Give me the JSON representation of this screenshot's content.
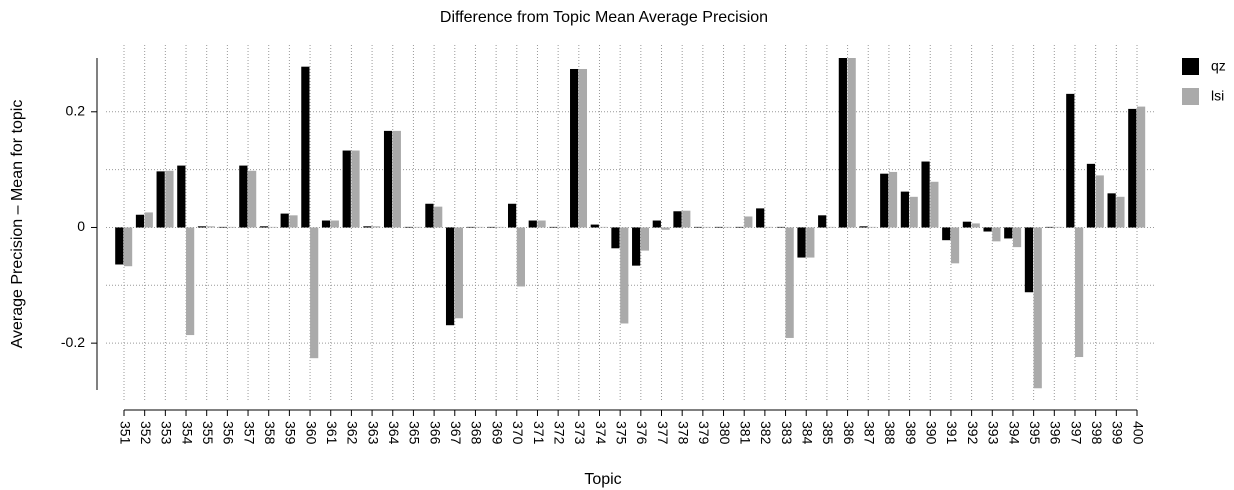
{
  "chart_data": {
    "type": "bar",
    "title": "Difference from Topic Mean Average Precision",
    "x_label": "Topic",
    "y_label": "Average Precision – Mean for topic",
    "categories": [
      "351",
      "352",
      "353",
      "354",
      "355",
      "356",
      "357",
      "358",
      "359",
      "360",
      "361",
      "362",
      "363",
      "364",
      "365",
      "366",
      "367",
      "368",
      "369",
      "370",
      "371",
      "372",
      "373",
      "374",
      "375",
      "376",
      "377",
      "378",
      "379",
      "380",
      "381",
      "382",
      "383",
      "384",
      "385",
      "386",
      "387",
      "388",
      "389",
      "390",
      "391",
      "392",
      "393",
      "394",
      "395",
      "396",
      "397",
      "398",
      "399",
      "400"
    ],
    "series": [
      {
        "name": "qz",
        "color": "#000000",
        "values": [
          -0.064,
          0.022,
          0.097,
          0.107,
          0.002,
          0.001,
          0.107,
          0.002,
          0.024,
          0.278,
          0.012,
          0.133,
          0.002,
          0.167,
          0.001,
          0.041,
          -0.169,
          0.001,
          0.001,
          0.041,
          0.012,
          0.001,
          0.274,
          0.005,
          -0.036,
          -0.066,
          0.012,
          0.028,
          0.001,
          0.001,
          0.001,
          0.033,
          0.001,
          -0.052,
          0.021,
          0.293,
          0.002,
          0.093,
          0.062,
          0.114,
          -0.022,
          0.01,
          -0.007,
          -0.019,
          -0.112,
          0.001,
          0.231,
          0.11,
          0.059,
          0.205
        ]
      },
      {
        "name": "lsi",
        "color": "#aaaaaa",
        "values": [
          -0.067,
          0.026,
          0.098,
          -0.186,
          0.002,
          0.001,
          0.098,
          0.001,
          0.021,
          -0.226,
          0.012,
          0.133,
          0.002,
          0.167,
          0.001,
          0.036,
          -0.157,
          0.001,
          0.001,
          -0.102,
          0.012,
          0.001,
          0.274,
          0.001,
          -0.166,
          -0.04,
          -0.004,
          0.029,
          0.001,
          0.001,
          0.019,
          0.001,
          -0.191,
          -0.052,
          0.001,
          0.293,
          0.001,
          0.096,
          0.053,
          0.079,
          -0.062,
          0.007,
          -0.024,
          -0.034,
          -0.278,
          0.001,
          -0.224,
          0.09,
          0.053,
          0.209
        ]
      }
    ],
    "ylim": [
      -0.281,
      0.293
    ],
    "yticks": [
      -0.2,
      0,
      0.2
    ],
    "ygrid": [
      -0.2,
      -0.1,
      0,
      0.1,
      0.2
    ],
    "xgrid": true,
    "legend": "right"
  }
}
